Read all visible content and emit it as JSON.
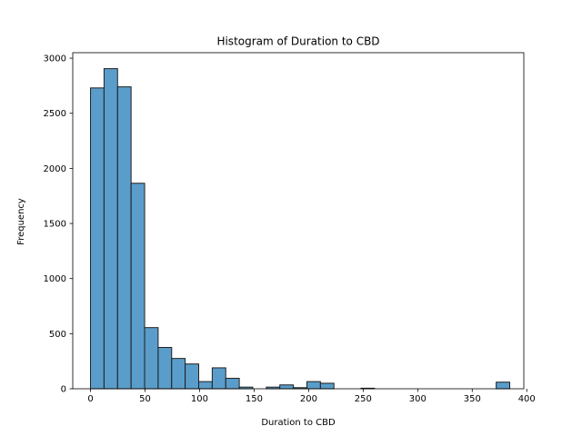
{
  "chart_data": {
    "type": "histogram",
    "title": "Histogram of Duration to CBD",
    "xlabel": "Duration to CBD",
    "ylabel": "Frequency",
    "xlim": [
      -16.3,
      397.3
    ],
    "ylim": [
      0,
      3050
    ],
    "xticks": [
      0,
      50,
      100,
      150,
      200,
      250,
      300,
      350,
      400
    ],
    "yticks": [
      0,
      500,
      1000,
      1500,
      2000,
      2500,
      3000
    ],
    "grid": false,
    "bar_color": "#5a9dcb",
    "edge_color": "#1f1f1f",
    "bins": [
      {
        "x0": 0.0,
        "x1": 12.4,
        "count": 2730
      },
      {
        "x0": 12.4,
        "x1": 24.8,
        "count": 2905
      },
      {
        "x0": 24.8,
        "x1": 37.2,
        "count": 2740
      },
      {
        "x0": 37.2,
        "x1": 49.6,
        "count": 1865
      },
      {
        "x0": 49.6,
        "x1": 62.0,
        "count": 555
      },
      {
        "x0": 62.0,
        "x1": 74.4,
        "count": 375
      },
      {
        "x0": 74.4,
        "x1": 86.8,
        "count": 275
      },
      {
        "x0": 86.8,
        "x1": 99.2,
        "count": 225
      },
      {
        "x0": 99.2,
        "x1": 111.6,
        "count": 65
      },
      {
        "x0": 111.6,
        "x1": 124.0,
        "count": 190
      },
      {
        "x0": 124.0,
        "x1": 136.4,
        "count": 95
      },
      {
        "x0": 136.4,
        "x1": 148.8,
        "count": 15
      },
      {
        "x0": 148.8,
        "x1": 161.2,
        "count": 0
      },
      {
        "x0": 161.2,
        "x1": 173.6,
        "count": 15
      },
      {
        "x0": 173.6,
        "x1": 186.0,
        "count": 35
      },
      {
        "x0": 186.0,
        "x1": 198.4,
        "count": 10
      },
      {
        "x0": 198.4,
        "x1": 210.8,
        "count": 65
      },
      {
        "x0": 210.8,
        "x1": 223.2,
        "count": 50
      },
      {
        "x0": 223.2,
        "x1": 235.6,
        "count": 0
      },
      {
        "x0": 235.6,
        "x1": 248.0,
        "count": 0
      },
      {
        "x0": 248.0,
        "x1": 260.4,
        "count": 5
      },
      {
        "x0": 260.4,
        "x1": 272.8,
        "count": 0
      },
      {
        "x0": 272.8,
        "x1": 285.2,
        "count": 0
      },
      {
        "x0": 285.2,
        "x1": 297.6,
        "count": 0
      },
      {
        "x0": 297.6,
        "x1": 310.0,
        "count": 0
      },
      {
        "x0": 310.0,
        "x1": 322.4,
        "count": 0
      },
      {
        "x0": 322.4,
        "x1": 334.8,
        "count": 0
      },
      {
        "x0": 334.8,
        "x1": 347.2,
        "count": 0
      },
      {
        "x0": 347.2,
        "x1": 359.6,
        "count": 0
      },
      {
        "x0": 359.6,
        "x1": 372.0,
        "count": 0
      },
      {
        "x0": 372.0,
        "x1": 384.4,
        "count": 60
      }
    ]
  }
}
